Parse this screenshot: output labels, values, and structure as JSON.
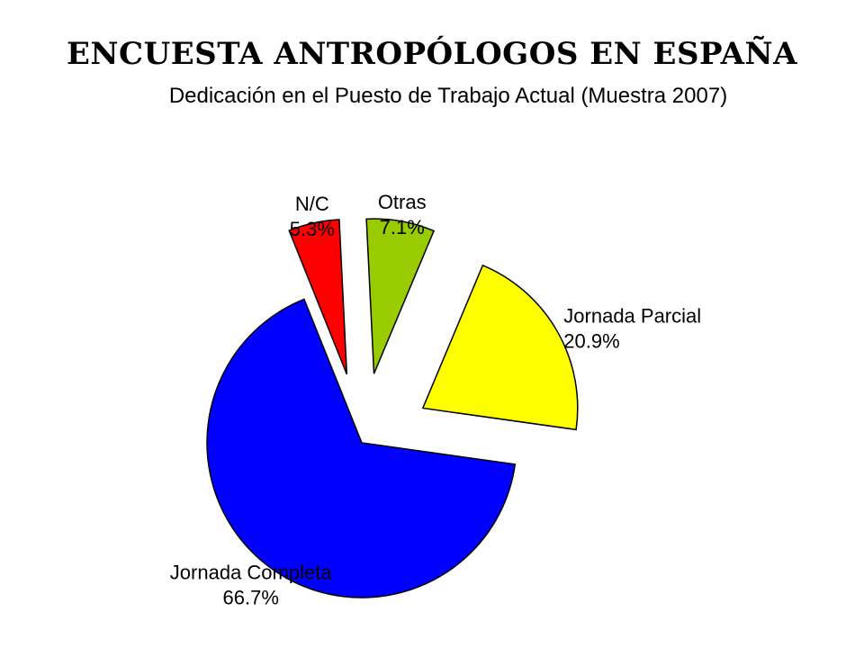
{
  "slide_title": "ENCUESTA ANTROPÓLOGOS EN ESPAÑA",
  "chart_data": {
    "type": "pie",
    "title": "Dedicación en el Puesto de Trabajo Actual (Muestra 2007)",
    "slices": [
      {
        "label": "Jornada Completa",
        "value": 66.7,
        "value_label": "66.7%",
        "color": "#0000FF"
      },
      {
        "label": "N/C",
        "value": 5.3,
        "value_label": "5.3%",
        "color": "#FF0000"
      },
      {
        "label": "Otras",
        "value": 7.1,
        "value_label": "7.1%",
        "color": "#99CC00"
      },
      {
        "label": "Jornada Parcial",
        "value": 20.9,
        "value_label": "20.9%",
        "color": "#FFFF00"
      }
    ],
    "exploded": [
      "N/C",
      "Otras",
      "Jornada Parcial"
    ],
    "legend": false
  }
}
